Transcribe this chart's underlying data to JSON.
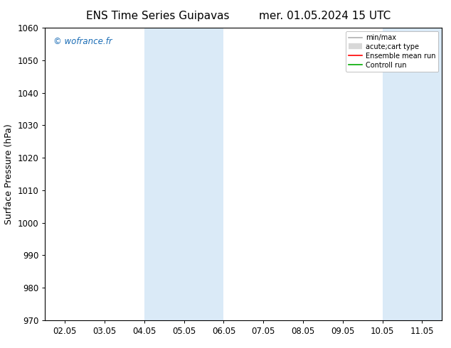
{
  "title_left": "ENS Time Series Guipavas",
  "title_right": "mer. 01.05.2024 15 UTC",
  "ylabel": "Surface Pressure (hPa)",
  "ylim": [
    970,
    1060
  ],
  "yticks": [
    970,
    980,
    990,
    1000,
    1010,
    1020,
    1030,
    1040,
    1050,
    1060
  ],
  "xlabels": [
    "02.05",
    "03.05",
    "04.05",
    "05.05",
    "06.05",
    "07.05",
    "08.05",
    "09.05",
    "10.05",
    "11.05"
  ],
  "x_positions": [
    0,
    1,
    2,
    3,
    4,
    5,
    6,
    7,
    8,
    9
  ],
  "xlim": [
    -0.5,
    9.5
  ],
  "shaded_bands": [
    {
      "x_start": 2.0,
      "x_end": 4.0
    },
    {
      "x_start": 8.0,
      "x_end": 9.5
    }
  ],
  "band_color": "#daeaf7",
  "background_color": "#ffffff",
  "watermark": "© wofrance.fr",
  "watermark_color": "#1a6cb5",
  "legend_entries": [
    {
      "label": "min/max",
      "color": "#b0b0b0",
      "lw": 1.2,
      "style": "line"
    },
    {
      "label": "acute;cart type",
      "color": "#d8d8d8",
      "lw": 6,
      "style": "band"
    },
    {
      "label": "Ensemble mean run",
      "color": "#ff0000",
      "lw": 1.2,
      "style": "line"
    },
    {
      "label": "Controll run",
      "color": "#00aa00",
      "lw": 1.2,
      "style": "line"
    }
  ],
  "title_fontsize": 11,
  "tick_fontsize": 8.5,
  "ylabel_fontsize": 9,
  "fig_width": 6.34,
  "fig_height": 4.9,
  "dpi": 100
}
